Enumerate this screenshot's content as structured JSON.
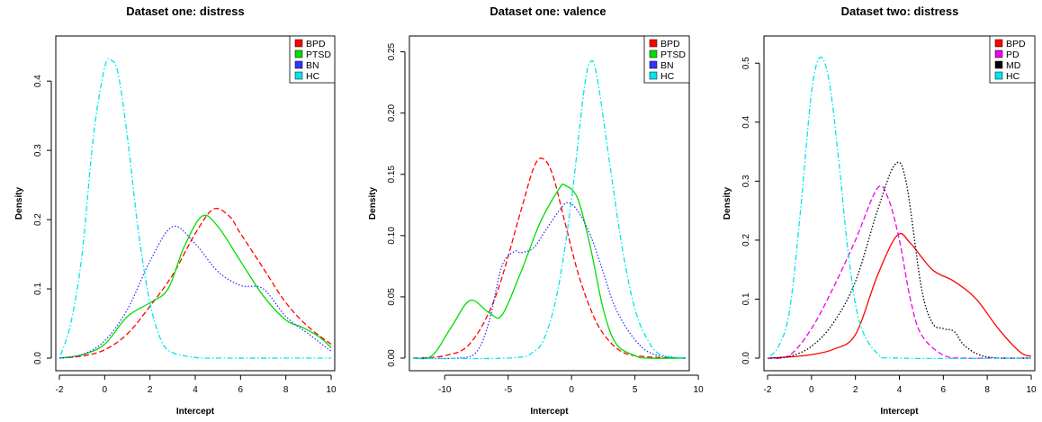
{
  "chart_data": [
    {
      "type": "line",
      "title": "Dataset one: distress",
      "xlabel": "Intercept",
      "ylabel": "Density",
      "xlim": [
        -2,
        10
      ],
      "ylim": [
        0,
        0.46
      ],
      "xticks": [
        "-2",
        "0",
        "2",
        "4",
        "6",
        "8",
        "10"
      ],
      "yticks": [
        "0.0",
        "0.1",
        "0.2",
        "0.3",
        "0.4"
      ],
      "legend_position": "top-right",
      "series": [
        {
          "name": "BPD",
          "color": "#ff0000",
          "dash": "dashed",
          "x": [
            -2,
            -1,
            0,
            1,
            2,
            3,
            4,
            4.8,
            5.5,
            6,
            7,
            8,
            9,
            10
          ],
          "y": [
            0,
            0.003,
            0.012,
            0.035,
            0.075,
            0.12,
            0.18,
            0.215,
            0.205,
            0.18,
            0.13,
            0.08,
            0.045,
            0.02
          ]
        },
        {
          "name": "PTSD",
          "color": "#00dd00",
          "dash": "solid",
          "x": [
            -2,
            -1,
            0,
            1,
            2,
            2.8,
            3.5,
            4.3,
            5,
            6,
            7,
            8,
            8.7,
            9.5,
            10
          ],
          "y": [
            0,
            0.005,
            0.02,
            0.06,
            0.08,
            0.1,
            0.16,
            0.205,
            0.19,
            0.14,
            0.09,
            0.055,
            0.045,
            0.03,
            0.015
          ]
        },
        {
          "name": "BN",
          "color": "#3333ff",
          "dash": "dotted",
          "x": [
            -2,
            -1,
            0,
            1,
            2,
            3,
            4,
            5,
            6,
            7,
            8,
            9,
            10
          ],
          "y": [
            0,
            0.005,
            0.025,
            0.07,
            0.14,
            0.19,
            0.165,
            0.125,
            0.105,
            0.1,
            0.06,
            0.035,
            0.01
          ]
        },
        {
          "name": "HC",
          "color": "#00e5ee",
          "dash": "dotdash",
          "x": [
            -2,
            -1.5,
            -1,
            -0.5,
            0,
            0.3,
            0.6,
            1,
            1.5,
            2,
            2.5,
            3,
            4,
            5,
            10
          ],
          "y": [
            0,
            0.05,
            0.15,
            0.32,
            0.42,
            0.43,
            0.41,
            0.32,
            0.18,
            0.08,
            0.025,
            0.008,
            0.001,
            0,
            0
          ]
        }
      ]
    },
    {
      "type": "line",
      "title": "Dataset one: valence",
      "xlabel": "Intercept",
      "ylabel": "Density",
      "xlim": [
        -12.5,
        9
      ],
      "ylim": [
        0,
        0.26
      ],
      "xticks": [
        "-10",
        "-5",
        "0",
        "5",
        "10"
      ],
      "yticks": [
        "0.00",
        "0.05",
        "0.10",
        "0.15",
        "0.20",
        "0.25"
      ],
      "legend_position": "top-right",
      "series": [
        {
          "name": "BPD",
          "color": "#ff0000",
          "dash": "dashed",
          "x": [
            -12.5,
            -10,
            -8,
            -6,
            -4,
            -3,
            -2.3,
            -1.5,
            -0.5,
            0.5,
            1.5,
            2.5,
            4,
            6,
            9
          ],
          "y": [
            0,
            0.002,
            0.012,
            0.05,
            0.12,
            0.155,
            0.163,
            0.15,
            0.11,
            0.07,
            0.04,
            0.02,
            0.005,
            0.001,
            0
          ]
        },
        {
          "name": "PTSD",
          "color": "#00dd00",
          "dash": "solid",
          "x": [
            -12.5,
            -11,
            -9.5,
            -8,
            -6.5,
            -5.5,
            -4,
            -2.5,
            -1,
            -0.5,
            0.5,
            1.5,
            2.5,
            3.5,
            5,
            6,
            9
          ],
          "y": [
            0,
            0.002,
            0.025,
            0.047,
            0.037,
            0.035,
            0.07,
            0.11,
            0.138,
            0.141,
            0.13,
            0.09,
            0.04,
            0.012,
            0.002,
            0,
            0
          ]
        },
        {
          "name": "BN",
          "color": "#3333ff",
          "dash": "dotted",
          "x": [
            -12.5,
            -9,
            -7.5,
            -6.5,
            -5.5,
            -4.5,
            -4,
            -3,
            -2,
            -1,
            -0.3,
            0.5,
            1.5,
            2.5,
            3.5,
            5,
            6.5,
            9
          ],
          "y": [
            0,
            0,
            0.005,
            0.03,
            0.075,
            0.087,
            0.086,
            0.09,
            0.105,
            0.12,
            0.127,
            0.12,
            0.1,
            0.07,
            0.04,
            0.015,
            0.003,
            0
          ]
        },
        {
          "name": "HC",
          "color": "#00e5ee",
          "dash": "dotdash",
          "x": [
            -12.5,
            -5,
            -3,
            -2,
            -1,
            0,
            1,
            1.5,
            2,
            3,
            4,
            5,
            6,
            7,
            9
          ],
          "y": [
            0,
            0,
            0.005,
            0.02,
            0.06,
            0.13,
            0.22,
            0.242,
            0.23,
            0.16,
            0.09,
            0.04,
            0.015,
            0.003,
            0
          ]
        }
      ]
    },
    {
      "type": "line",
      "title": "Dataset two: distress",
      "xlabel": "Intercept",
      "ylabel": "Density",
      "xlim": [
        -2,
        10
      ],
      "ylim": [
        0,
        0.54
      ],
      "xticks": [
        "-2",
        "0",
        "2",
        "4",
        "6",
        "8",
        "10"
      ],
      "yticks": [
        "0.0",
        "0.1",
        "0.2",
        "0.3",
        "0.4",
        "0.5"
      ],
      "legend_position": "top-right",
      "series": [
        {
          "name": "BPD",
          "color": "#ff0000",
          "dash": "solid",
          "x": [
            -2,
            -1,
            0,
            1,
            2,
            3,
            3.9,
            4.5,
            5.5,
            6.5,
            7.5,
            8.5,
            9.5,
            10
          ],
          "y": [
            0,
            0.002,
            0.006,
            0.015,
            0.04,
            0.14,
            0.208,
            0.195,
            0.15,
            0.13,
            0.1,
            0.05,
            0.01,
            0.003
          ]
        },
        {
          "name": "PD",
          "color": "#ee00ee",
          "dash": "dashed",
          "x": [
            -2,
            -1,
            0,
            1,
            2,
            3,
            3.5,
            4,
            4.5,
            5,
            6,
            7,
            8,
            10
          ],
          "y": [
            0,
            0.005,
            0.05,
            0.12,
            0.2,
            0.288,
            0.27,
            0.2,
            0.1,
            0.04,
            0.005,
            0,
            0,
            0
          ]
        },
        {
          "name": "MD",
          "color": "#000000",
          "dash": "dotted",
          "x": [
            -2,
            -1,
            0,
            1,
            2,
            3,
            3.8,
            4.3,
            5,
            5.5,
            6,
            6.5,
            7,
            8,
            10
          ],
          "y": [
            0,
            0.003,
            0.02,
            0.06,
            0.13,
            0.25,
            0.328,
            0.3,
            0.12,
            0.06,
            0.05,
            0.045,
            0.02,
            0.002,
            0
          ]
        },
        {
          "name": "HC",
          "color": "#00e5ee",
          "dash": "dotdash",
          "x": [
            -2,
            -1.5,
            -1,
            -0.5,
            0,
            0.4,
            0.8,
            1.2,
            1.7,
            2.2,
            3,
            4,
            10
          ],
          "y": [
            0,
            0.02,
            0.08,
            0.25,
            0.45,
            0.51,
            0.47,
            0.35,
            0.17,
            0.06,
            0.008,
            0,
            0
          ]
        }
      ]
    }
  ]
}
